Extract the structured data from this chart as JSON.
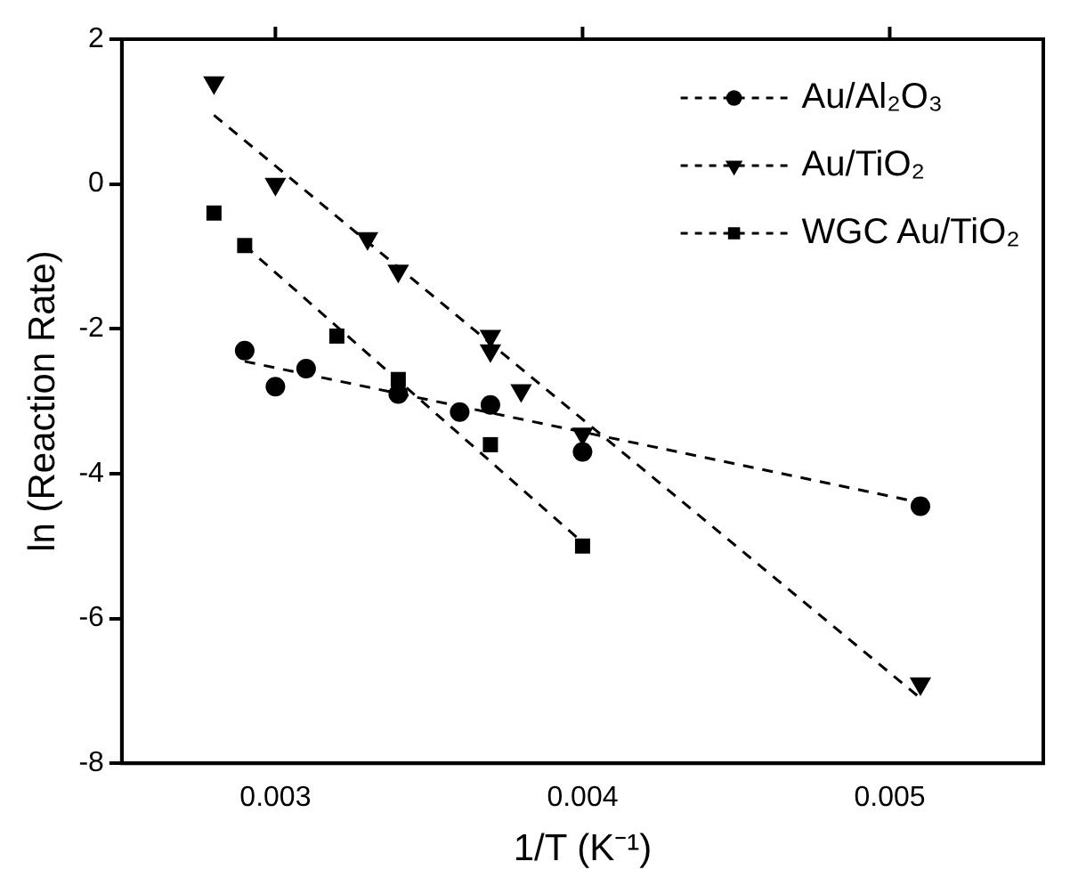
{
  "chart_data": {
    "type": "scatter",
    "xlabel": "1/T (K⁻¹)",
    "ylabel": "ln (Reaction Rate)",
    "xlim": [
      0.0025,
      0.0055
    ],
    "xticks": [
      0.003,
      0.004,
      0.005
    ],
    "ylim": [
      -8,
      2
    ],
    "yticks": [
      -8,
      -6,
      -4,
      -2,
      0,
      2
    ],
    "grid": false,
    "legend": "top right",
    "series": [
      {
        "name": "Au/Al₂O₃",
        "type": "scatter",
        "marker": "circle",
        "color": "#000000",
        "x": [
          0.0029,
          0.003,
          0.0031,
          0.0034,
          0.0036,
          0.0037,
          0.004,
          0.0051
        ],
        "values": [
          -2.3,
          -2.8,
          -2.55,
          -2.9,
          -3.15,
          -3.05,
          -3.7,
          -4.45
        ]
      },
      {
        "name": "Au/TiO₂",
        "type": "scatter",
        "marker": "triangle",
        "color": "#000000",
        "x": [
          0.0028,
          0.003,
          0.0033,
          0.0034,
          0.0037,
          0.0037,
          0.0038,
          0.004,
          0.0051
        ],
        "values": [
          1.4,
          0,
          -0.75,
          -1.2,
          -2.1,
          -2.3,
          -2.85,
          -3.45,
          -6.9
        ]
      },
      {
        "name": "WGC Au/TiO₂",
        "type": "scatter",
        "marker": "square",
        "color": "#000000",
        "x": [
          0.0028,
          0.0029,
          0.0032,
          0.0034,
          0.0037,
          0.004
        ],
        "values": [
          -0.4,
          -0.85,
          -2.1,
          -2.7,
          -3.6,
          -5.0
        ]
      },
      {
        "type": "line",
        "marker": "none",
        "line_style": "dashed",
        "color": "#000000",
        "x": [
          0.0029,
          0.0051
        ],
        "values": [
          -2.45,
          -4.4
        ]
      },
      {
        "type": "line",
        "marker": "none",
        "line_style": "dashed",
        "color": "#000000",
        "x": [
          0.0028,
          0.0051
        ],
        "values": [
          0.95,
          -7.1
        ]
      },
      {
        "type": "line",
        "marker": "none",
        "line_style": "dashed",
        "color": "#000000",
        "x": [
          0.0029,
          0.004
        ],
        "values": [
          -0.85,
          -4.95
        ]
      }
    ]
  }
}
